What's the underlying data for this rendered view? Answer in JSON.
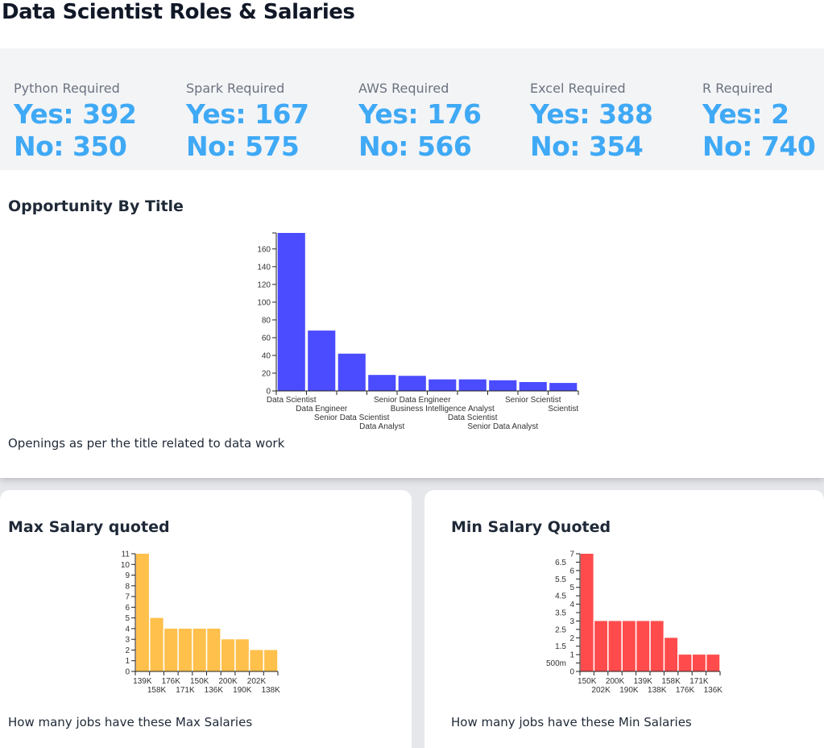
{
  "header": {
    "title": "Data Scientist Roles & Salaries"
  },
  "stats": [
    {
      "label": "Python Required",
      "yes": "Yes: 392",
      "no": "No: 350"
    },
    {
      "label": "Spark Required",
      "yes": "Yes: 167",
      "no": "No: 575"
    },
    {
      "label": "AWS Required",
      "yes": "Yes: 176",
      "no": "No: 566"
    },
    {
      "label": "Excel Required",
      "yes": "Yes: 388",
      "no": "No: 354"
    },
    {
      "label": "R Required",
      "yes": "Yes: 2",
      "no": "No: 740"
    }
  ],
  "cards": {
    "title_card": {
      "title": "Opportunity By Title",
      "caption": "Openings as per the title related to data work"
    },
    "max_card": {
      "title": "Max Salary quoted",
      "caption": "How many jobs have these Max Salaries"
    },
    "min_card": {
      "title": "Min Salary Quoted",
      "caption": "How many jobs have these Min Salaries"
    }
  },
  "chart_data": [
    {
      "type": "bar",
      "title": "Opportunity By Title",
      "color": "#4b4bff",
      "categories": [
        "Data Scientist",
        "Data Engineer",
        "Senior Data Scientist",
        "Data Analyst",
        "Senior Data Engineer",
        "Business Intelligence Analyst",
        "Data Scientist",
        "Senior Data Analyst",
        "Senior Scientist",
        "Scientist"
      ],
      "values": [
        178,
        68,
        42,
        18,
        17,
        13,
        13,
        12,
        10,
        9
      ],
      "ylim": [
        0,
        178
      ],
      "y_ticks": [
        0,
        20,
        40,
        60,
        80,
        100,
        120,
        140,
        160
      ],
      "y_tick_labels": [
        "0",
        "20",
        "40",
        "60",
        "80",
        "100",
        "120",
        "140",
        "160"
      ]
    },
    {
      "type": "bar",
      "title": "Max Salary quoted",
      "color": "#ffc04c",
      "categories": [
        "139K",
        "158K",
        "176K",
        "171K",
        "150K",
        "136K",
        "200K",
        "190K",
        "202K",
        "138K"
      ],
      "values": [
        11,
        5,
        4,
        4,
        4,
        4,
        3,
        3,
        2,
        2
      ],
      "ylim": [
        0,
        11
      ],
      "y_ticks": [
        0,
        1,
        2,
        3,
        4,
        5,
        6,
        7,
        8,
        9,
        10,
        11
      ],
      "y_tick_labels": [
        "0",
        "1",
        "2",
        "3",
        "4",
        "5",
        "6",
        "7",
        "8",
        "9",
        "10",
        "11"
      ]
    },
    {
      "type": "bar",
      "title": "Min Salary Quoted",
      "color": "#ff4b4b",
      "categories": [
        "150K",
        "202K",
        "200K",
        "190K",
        "139K",
        "138K",
        "158K",
        "176K",
        "171K",
        "136K"
      ],
      "values": [
        7,
        3,
        3,
        3,
        3,
        3,
        2,
        1,
        1,
        1
      ],
      "ylim": [
        0,
        7
      ],
      "y_ticks": [
        0,
        0.5,
        1,
        1.5,
        2,
        2.5,
        3,
        3.5,
        4,
        4.5,
        5,
        5.5,
        6,
        6.5,
        7
      ],
      "y_tick_labels": [
        "0",
        "500m",
        "1",
        "1.5",
        "2",
        "2.5",
        "3",
        "3.5",
        "4",
        "4.5",
        "5",
        "5.5",
        "6",
        "6.5",
        "7"
      ]
    }
  ]
}
